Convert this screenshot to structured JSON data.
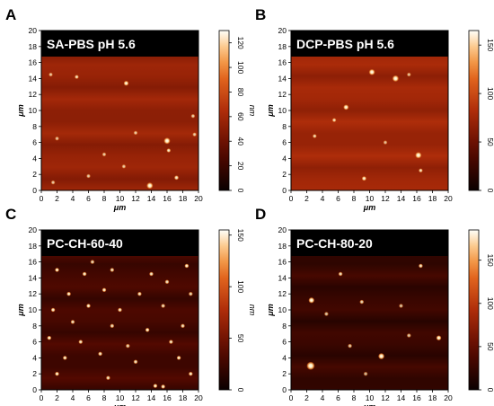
{
  "colors": {
    "map_dark": "#1a0000",
    "map_mid": "#8a2a0a",
    "map_bright": "#ffffff",
    "title_bg": "#000000",
    "title_fg": "#ffffff"
  },
  "panels": [
    {
      "id": "A",
      "title": "SA-PBS pH 5.6",
      "x_axis_label": "μm",
      "y_axis_label": "μm",
      "unit": "nm",
      "x_ticks": [
        "0",
        "2",
        "4",
        "6",
        "8",
        "10",
        "12",
        "14",
        "16",
        "18",
        "20"
      ],
      "y_ticks": [
        "0",
        "2",
        "4",
        "6",
        "8",
        "10",
        "12",
        "14",
        "16",
        "18",
        "20"
      ],
      "cb_ticks": [
        "0",
        "20",
        "40",
        "60",
        "80",
        "100",
        "120"
      ],
      "cb_max": 130,
      "bg_brightness": 0.42,
      "particles": [
        {
          "x": 4.5,
          "y": 14.2,
          "h": 0.75,
          "r": 0.28
        },
        {
          "x": 10.8,
          "y": 13.4,
          "h": 0.95,
          "r": 0.35
        },
        {
          "x": 16.0,
          "y": 6.2,
          "h": 1.0,
          "r": 0.45
        },
        {
          "x": 16.2,
          "y": 5.0,
          "h": 0.85,
          "r": 0.3
        },
        {
          "x": 19.3,
          "y": 9.3,
          "h": 0.6,
          "r": 0.22
        },
        {
          "x": 19.5,
          "y": 7.0,
          "h": 0.55,
          "r": 0.22
        },
        {
          "x": 17.2,
          "y": 1.6,
          "h": 0.85,
          "r": 0.32
        },
        {
          "x": 13.8,
          "y": 0.6,
          "h": 1.0,
          "r": 0.45
        },
        {
          "x": 1.2,
          "y": 14.5,
          "h": 0.5,
          "r": 0.2
        },
        {
          "x": 8.0,
          "y": 4.5,
          "h": 0.55,
          "r": 0.2
        },
        {
          "x": 6.0,
          "y": 1.8,
          "h": 0.5,
          "r": 0.18
        },
        {
          "x": 12.0,
          "y": 7.2,
          "h": 0.5,
          "r": 0.18
        },
        {
          "x": 1.5,
          "y": 1.0,
          "h": 0.5,
          "r": 0.18
        },
        {
          "x": 2.0,
          "y": 6.5,
          "h": 0.45,
          "r": 0.18
        },
        {
          "x": 10.5,
          "y": 3.0,
          "h": 0.5,
          "r": 0.2
        }
      ]
    },
    {
      "id": "B",
      "title": "DCP-PBS pH 5.6",
      "x_axis_label": "μm",
      "y_axis_label": "μm",
      "unit": "nm",
      "x_ticks": [
        "0",
        "2",
        "4",
        "6",
        "8",
        "10",
        "12",
        "14",
        "16",
        "18",
        "20"
      ],
      "y_ticks": [
        "0",
        "2",
        "4",
        "6",
        "8",
        "10",
        "12",
        "14",
        "16",
        "18",
        "20"
      ],
      "cb_ticks": [
        "0",
        "50",
        "100",
        "150"
      ],
      "cb_max": 165,
      "bg_brightness": 0.45,
      "particles": [
        {
          "x": 10.3,
          "y": 14.8,
          "h": 1.0,
          "r": 0.42
        },
        {
          "x": 13.3,
          "y": 14.0,
          "h": 1.0,
          "r": 0.45
        },
        {
          "x": 7.0,
          "y": 10.4,
          "h": 0.95,
          "r": 0.38
        },
        {
          "x": 5.5,
          "y": 8.8,
          "h": 0.7,
          "r": 0.25
        },
        {
          "x": 3.0,
          "y": 6.8,
          "h": 0.7,
          "r": 0.22
        },
        {
          "x": 16.2,
          "y": 4.4,
          "h": 1.0,
          "r": 0.45
        },
        {
          "x": 16.5,
          "y": 2.5,
          "h": 0.75,
          "r": 0.3
        },
        {
          "x": 9.3,
          "y": 1.5,
          "h": 0.9,
          "r": 0.33
        },
        {
          "x": 15.0,
          "y": 14.5,
          "h": 0.45,
          "r": 0.18
        },
        {
          "x": 12.0,
          "y": 6.0,
          "h": 0.4,
          "r": 0.16
        }
      ]
    },
    {
      "id": "C",
      "title": "PC-CH-60-40",
      "x_axis_label": "μm",
      "y_axis_label": "μm",
      "unit": "nm",
      "x_ticks": [
        "0",
        "2",
        "4",
        "6",
        "8",
        "10",
        "12",
        "14",
        "16",
        "18",
        "20"
      ],
      "y_ticks": [
        "0",
        "2",
        "4",
        "6",
        "8",
        "10",
        "12",
        "14",
        "16",
        "18",
        "20"
      ],
      "cb_ticks": [
        "0",
        "50",
        "100",
        "150"
      ],
      "cb_max": 155,
      "bg_brightness": 0.18,
      "particles": [
        {
          "x": 2.0,
          "y": 15.0,
          "h": 1.0,
          "r": 0.22
        },
        {
          "x": 5.5,
          "y": 14.5,
          "h": 0.9,
          "r": 0.2
        },
        {
          "x": 9.0,
          "y": 15.0,
          "h": 0.8,
          "r": 0.18
        },
        {
          "x": 14.0,
          "y": 14.5,
          "h": 0.85,
          "r": 0.18
        },
        {
          "x": 18.5,
          "y": 15.5,
          "h": 1.0,
          "r": 0.3
        },
        {
          "x": 16.0,
          "y": 13.5,
          "h": 0.8,
          "r": 0.18
        },
        {
          "x": 3.5,
          "y": 12.0,
          "h": 0.95,
          "r": 0.22
        },
        {
          "x": 8.0,
          "y": 12.5,
          "h": 0.9,
          "r": 0.22
        },
        {
          "x": 12.5,
          "y": 12.0,
          "h": 0.85,
          "r": 0.2
        },
        {
          "x": 19.0,
          "y": 12.0,
          "h": 0.7,
          "r": 0.18
        },
        {
          "x": 1.5,
          "y": 10.0,
          "h": 0.9,
          "r": 0.2
        },
        {
          "x": 6.0,
          "y": 10.5,
          "h": 1.0,
          "r": 0.25
        },
        {
          "x": 10.0,
          "y": 10.0,
          "h": 0.85,
          "r": 0.2
        },
        {
          "x": 15.5,
          "y": 10.5,
          "h": 0.75,
          "r": 0.18
        },
        {
          "x": 4.0,
          "y": 8.5,
          "h": 0.8,
          "r": 0.18
        },
        {
          "x": 9.0,
          "y": 8.0,
          "h": 0.75,
          "r": 0.18
        },
        {
          "x": 13.5,
          "y": 7.5,
          "h": 1.0,
          "r": 0.3
        },
        {
          "x": 18.0,
          "y": 8.0,
          "h": 0.8,
          "r": 0.2
        },
        {
          "x": 1.0,
          "y": 6.5,
          "h": 0.95,
          "r": 0.22
        },
        {
          "x": 5.0,
          "y": 6.0,
          "h": 0.85,
          "r": 0.2
        },
        {
          "x": 11.0,
          "y": 5.5,
          "h": 0.7,
          "r": 0.18
        },
        {
          "x": 16.5,
          "y": 6.0,
          "h": 0.85,
          "r": 0.2
        },
        {
          "x": 3.0,
          "y": 4.0,
          "h": 0.9,
          "r": 0.22
        },
        {
          "x": 7.5,
          "y": 4.5,
          "h": 0.85,
          "r": 0.2
        },
        {
          "x": 12.0,
          "y": 3.5,
          "h": 0.8,
          "r": 0.18
        },
        {
          "x": 17.5,
          "y": 4.0,
          "h": 0.95,
          "r": 0.22
        },
        {
          "x": 2.0,
          "y": 2.0,
          "h": 1.0,
          "r": 0.25
        },
        {
          "x": 8.5,
          "y": 1.5,
          "h": 0.8,
          "r": 0.2
        },
        {
          "x": 14.5,
          "y": 0.5,
          "h": 1.0,
          "r": 0.3
        },
        {
          "x": 15.5,
          "y": 0.4,
          "h": 0.95,
          "r": 0.28
        },
        {
          "x": 19.0,
          "y": 2.0,
          "h": 0.9,
          "r": 0.25
        },
        {
          "x": 6.5,
          "y": 16.0,
          "h": 0.7,
          "r": 0.16
        }
      ]
    },
    {
      "id": "D",
      "title": "PC-CH-80-20",
      "x_axis_label": "μm",
      "y_axis_label": "μm",
      "unit": "nm",
      "x_ticks": [
        "0",
        "2",
        "4",
        "6",
        "8",
        "10",
        "12",
        "14",
        "16",
        "18",
        "20"
      ],
      "y_ticks": [
        "0",
        "2",
        "4",
        "6",
        "8",
        "10",
        "12",
        "14",
        "16",
        "18",
        "20"
      ],
      "cb_ticks": [
        "0",
        "50",
        "100",
        "150"
      ],
      "cb_max": 185,
      "bg_brightness": 0.14,
      "particles": [
        {
          "x": 2.6,
          "y": 11.2,
          "h": 1.0,
          "r": 0.4
        },
        {
          "x": 6.3,
          "y": 14.5,
          "h": 0.75,
          "r": 0.22
        },
        {
          "x": 16.5,
          "y": 15.5,
          "h": 0.85,
          "r": 0.28
        },
        {
          "x": 9.0,
          "y": 11.0,
          "h": 0.7,
          "r": 0.2
        },
        {
          "x": 4.5,
          "y": 9.5,
          "h": 0.55,
          "r": 0.18
        },
        {
          "x": 14.0,
          "y": 10.5,
          "h": 0.5,
          "r": 0.18
        },
        {
          "x": 7.5,
          "y": 5.5,
          "h": 0.6,
          "r": 0.2
        },
        {
          "x": 18.8,
          "y": 6.5,
          "h": 1.0,
          "r": 0.35
        },
        {
          "x": 11.5,
          "y": 4.2,
          "h": 1.0,
          "r": 0.42
        },
        {
          "x": 2.5,
          "y": 3.0,
          "h": 1.0,
          "r": 0.55
        },
        {
          "x": 15.0,
          "y": 6.8,
          "h": 0.55,
          "r": 0.18
        },
        {
          "x": 9.5,
          "y": 2.0,
          "h": 0.45,
          "r": 0.16
        }
      ]
    }
  ]
}
